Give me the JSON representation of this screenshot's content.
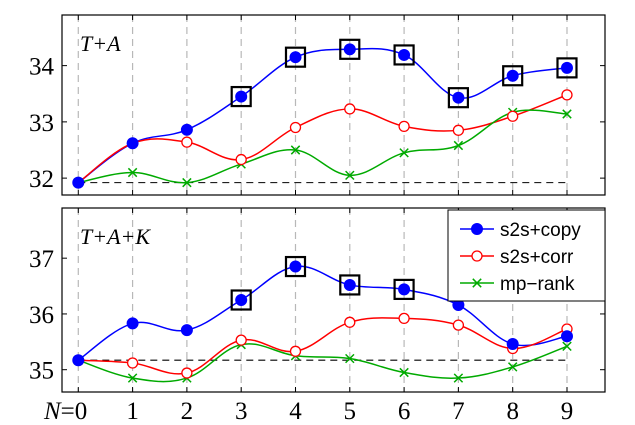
{
  "chart_data": [
    {
      "type": "line",
      "title": "T+A",
      "x": [
        0,
        1,
        2,
        3,
        4,
        5,
        6,
        7,
        8,
        9
      ],
      "x_tick_labels": [
        "N=0",
        "1",
        "2",
        "3",
        "4",
        "5",
        "6",
        "7",
        "8",
        "9"
      ],
      "xlim": [
        -0.3,
        9.7
      ],
      "ylim": [
        31.7,
        34.9
      ],
      "yticks": [
        32,
        33,
        34
      ],
      "baseline": 31.92,
      "grid": "vertical dashed",
      "series": [
        {
          "name": "s2s+copy",
          "color": "#0000ff",
          "marker": "filled-circle",
          "values": [
            31.92,
            32.62,
            32.86,
            33.45,
            34.15,
            34.29,
            34.19,
            33.43,
            33.82,
            33.96
          ],
          "highlighted": [
            false,
            false,
            false,
            true,
            true,
            true,
            true,
            true,
            true,
            true
          ]
        },
        {
          "name": "s2s+corr",
          "color": "#ff0000",
          "marker": "open-circle",
          "values": [
            31.92,
            32.62,
            32.64,
            32.33,
            32.9,
            33.23,
            32.92,
            32.85,
            33.1,
            33.48
          ]
        },
        {
          "name": "mp−rank",
          "color": "#00aa00",
          "marker": "x",
          "values": [
            31.92,
            32.1,
            31.92,
            32.25,
            32.5,
            32.05,
            32.45,
            32.58,
            33.17,
            33.14
          ]
        }
      ]
    },
    {
      "type": "line",
      "title": "T+A+K",
      "x": [
        0,
        1,
        2,
        3,
        4,
        5,
        6,
        7,
        8,
        9
      ],
      "x_tick_labels": [
        "N=0",
        "1",
        "2",
        "3",
        "4",
        "5",
        "6",
        "7",
        "8",
        "9"
      ],
      "xlim": [
        -0.3,
        9.7
      ],
      "ylim": [
        34.6,
        37.9
      ],
      "yticks": [
        35,
        36,
        37
      ],
      "baseline": 35.17,
      "grid": "vertical dashed",
      "legend": "top-right",
      "series": [
        {
          "name": "s2s+copy",
          "color": "#0000ff",
          "marker": "filled-circle",
          "values": [
            35.17,
            35.83,
            35.71,
            36.25,
            36.85,
            36.52,
            36.44,
            36.16,
            35.46,
            35.6
          ],
          "highlighted": [
            false,
            false,
            false,
            true,
            true,
            true,
            true,
            false,
            false,
            false
          ]
        },
        {
          "name": "s2s+corr",
          "color": "#ff0000",
          "marker": "open-circle",
          "values": [
            35.17,
            35.12,
            34.94,
            35.53,
            35.33,
            35.85,
            35.92,
            35.8,
            35.38,
            35.73
          ]
        },
        {
          "name": "mp−rank",
          "color": "#00aa00",
          "marker": "x",
          "values": [
            35.17,
            34.85,
            34.85,
            35.45,
            35.25,
            35.2,
            34.95,
            34.85,
            35.05,
            35.42
          ]
        }
      ]
    }
  ]
}
